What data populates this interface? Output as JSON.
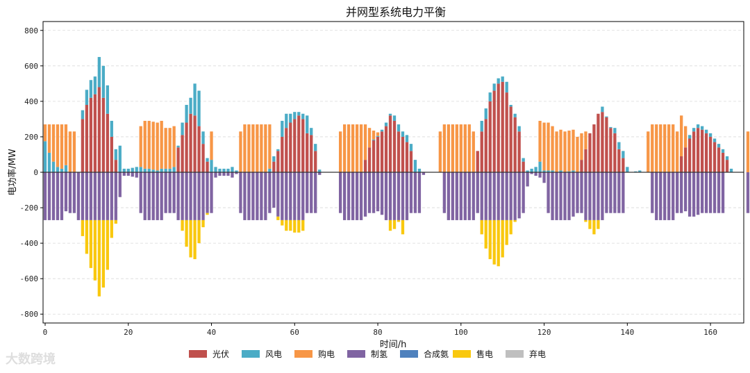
{
  "watermark": "大数跨境",
  "chart_data": {
    "type": "bar",
    "stacked": true,
    "title": "并网型系统电力平衡",
    "xlabel": "时间/h",
    "ylabel": "电功率/MW",
    "xlim": [
      -0.5,
      168
    ],
    "ylim": [
      -850,
      850
    ],
    "xticks": [
      0,
      20,
      40,
      60,
      80,
      100,
      120,
      140,
      160
    ],
    "yticks": [
      -800,
      -600,
      -400,
      -200,
      0,
      200,
      400,
      600,
      800
    ],
    "grid": true,
    "legend_position": "bottom",
    "colors": {
      "pv": "#c0504d",
      "wind": "#4bacc6",
      "purchase": "#f79646",
      "h2": "#8064a2",
      "nh3": "#4f81bd",
      "sale": "#f9c80e",
      "curtail": "#bfbfbf"
    },
    "series": [
      {
        "key": "pv",
        "name": "光伏",
        "values": [
          0,
          0,
          0,
          0,
          0,
          0,
          0,
          0,
          0,
          300,
          380,
          420,
          440,
          480,
          420,
          330,
          200,
          70,
          0,
          0,
          0,
          0,
          0,
          0,
          0,
          0,
          0,
          0,
          0,
          0,
          0,
          0,
          140,
          210,
          280,
          330,
          320,
          260,
          160,
          60,
          0,
          0,
          0,
          0,
          0,
          0,
          0,
          0,
          0,
          0,
          0,
          0,
          0,
          0,
          0,
          60,
          120,
          200,
          250,
          280,
          300,
          320,
          300,
          220,
          210,
          120,
          0,
          0,
          0,
          0,
          0,
          0,
          0,
          0,
          0,
          0,
          0,
          70,
          140,
          180,
          200,
          230,
          260,
          320,
          290,
          230,
          200,
          170,
          120,
          0,
          0,
          0,
          0,
          0,
          0,
          0,
          0,
          0,
          0,
          0,
          0,
          0,
          0,
          0,
          120,
          230,
          300,
          400,
          460,
          500,
          510,
          450,
          370,
          310,
          230,
          60,
          0,
          0,
          0,
          0,
          0,
          0,
          0,
          0,
          0,
          0,
          0,
          0,
          0,
          70,
          130,
          220,
          270,
          330,
          340,
          310,
          250,
          220,
          130,
          80,
          0,
          0,
          0,
          0,
          0,
          0,
          0,
          0,
          0,
          0,
          0,
          0,
          0,
          90,
          140,
          190,
          230,
          250,
          240,
          220,
          200,
          170,
          140,
          110,
          70,
          0,
          0,
          0,
          0,
          0,
          0,
          0
        ]
      },
      {
        "key": "wind",
        "name": "风电",
        "values": [
          175,
          110,
          60,
          30,
          20,
          40,
          0,
          0,
          0,
          50,
          85,
          100,
          100,
          170,
          180,
          160,
          90,
          60,
          150,
          20,
          20,
          25,
          30,
          30,
          20,
          20,
          15,
          10,
          20,
          20,
          20,
          30,
          10,
          70,
          100,
          90,
          180,
          200,
          70,
          20,
          70,
          30,
          20,
          20,
          20,
          30,
          10,
          0,
          0,
          0,
          0,
          0,
          0,
          0,
          20,
          30,
          10,
          90,
          80,
          50,
          40,
          20,
          30,
          100,
          40,
          40,
          15,
          0,
          0,
          0,
          0,
          0,
          0,
          0,
          0,
          0,
          0,
          0,
          0,
          5,
          5,
          10,
          20,
          10,
          30,
          40,
          30,
          40,
          40,
          70,
          20,
          0,
          0,
          0,
          0,
          0,
          0,
          0,
          0,
          0,
          0,
          0,
          0,
          0,
          0,
          60,
          60,
          50,
          40,
          30,
          30,
          60,
          10,
          20,
          30,
          20,
          10,
          20,
          30,
          60,
          10,
          10,
          10,
          0,
          10,
          0,
          5,
          10,
          0,
          0,
          0,
          0,
          0,
          0,
          30,
          5,
          5,
          30,
          40,
          40,
          30,
          0,
          5,
          10,
          0,
          0,
          0,
          0,
          0,
          0,
          0,
          0,
          0,
          0,
          0,
          20,
          20,
          20,
          20,
          20,
          20,
          20,
          20,
          20,
          20,
          20,
          0,
          0,
          0,
          0,
          0,
          0,
          0
        ]
      },
      {
        "key": "purchase",
        "name": "购电",
        "values": [
          95,
          160,
          210,
          240,
          250,
          230,
          230,
          230,
          0,
          0,
          0,
          0,
          0,
          0,
          0,
          0,
          0,
          0,
          0,
          0,
          0,
          0,
          0,
          230,
          270,
          270,
          270,
          270,
          270,
          230,
          230,
          230,
          0,
          0,
          0,
          0,
          0,
          0,
          0,
          0,
          160,
          0,
          0,
          0,
          0,
          0,
          0,
          230,
          270,
          270,
          270,
          270,
          270,
          270,
          250,
          0,
          0,
          0,
          0,
          0,
          0,
          0,
          0,
          0,
          0,
          0,
          0,
          0,
          0,
          0,
          0,
          230,
          270,
          270,
          270,
          270,
          270,
          200,
          110,
          50,
          20,
          0,
          0,
          0,
          0,
          0,
          0,
          0,
          0,
          0,
          0,
          0,
          0,
          0,
          0,
          230,
          270,
          270,
          270,
          270,
          270,
          270,
          270,
          230,
          0,
          0,
          0,
          0,
          0,
          0,
          0,
          0,
          0,
          0,
          0,
          0,
          0,
          0,
          0,
          230,
          270,
          270,
          250,
          230,
          230,
          230,
          230,
          230,
          200,
          150,
          100,
          0,
          0,
          0,
          0,
          0,
          0,
          0,
          0,
          0,
          0,
          0,
          0,
          0,
          0,
          230,
          270,
          270,
          270,
          270,
          270,
          270,
          230,
          230,
          120,
          0,
          0,
          0,
          0,
          0,
          0,
          0,
          0,
          0,
          0,
          0,
          0,
          0,
          0,
          230
        ]
      },
      {
        "key": "h2",
        "name": "制氢",
        "values": [
          -270,
          -270,
          -270,
          -270,
          -270,
          -220,
          -230,
          -230,
          -270,
          -270,
          -270,
          -270,
          -270,
          -270,
          -270,
          -270,
          -270,
          -270,
          -140,
          -20,
          -20,
          -25,
          -30,
          -230,
          -270,
          -270,
          -270,
          -270,
          -270,
          -230,
          -230,
          -230,
          -270,
          -270,
          -270,
          -270,
          -270,
          -270,
          -270,
          -230,
          -230,
          -30,
          -20,
          -20,
          -20,
          -30,
          -10,
          -230,
          -270,
          -270,
          -270,
          -270,
          -270,
          -270,
          -230,
          -200,
          -250,
          -270,
          -270,
          -270,
          -270,
          -270,
          -270,
          -230,
          -230,
          -230,
          -15,
          0,
          0,
          0,
          0,
          -230,
          -270,
          -270,
          -270,
          -270,
          -270,
          -250,
          -230,
          -230,
          -220,
          -240,
          -270,
          -270,
          -270,
          -270,
          -270,
          -270,
          -230,
          -230,
          -230,
          -15,
          0,
          0,
          0,
          0,
          -230,
          -270,
          -270,
          -270,
          -270,
          -270,
          -270,
          -270,
          -230,
          -270,
          -270,
          -270,
          -270,
          -270,
          -270,
          -270,
          -270,
          -270,
          -260,
          -230,
          -80,
          -10,
          -20,
          -30,
          -60,
          -230,
          -270,
          -270,
          -270,
          -270,
          -270,
          -250,
          -230,
          -230,
          -270,
          -270,
          -270,
          -270,
          -270,
          -230,
          -230,
          -230,
          -230,
          -230,
          0,
          0,
          0,
          0,
          0,
          0,
          -230,
          -270,
          -270,
          -270,
          -270,
          -270,
          -230,
          -230,
          -220,
          -250,
          -250,
          -240,
          -230,
          -230,
          -230,
          -230,
          -230,
          -230,
          0,
          0,
          0,
          0,
          0,
          -230
        ]
      },
      {
        "key": "nh3",
        "name": "合成氨",
        "values": [
          0,
          0,
          0,
          0,
          0,
          0,
          0,
          0,
          0,
          0,
          0,
          0,
          0,
          0,
          0,
          0,
          0,
          0,
          0,
          0,
          0,
          0,
          0,
          0,
          0,
          0,
          0,
          0,
          0,
          0,
          0,
          0,
          0,
          0,
          0,
          0,
          0,
          0,
          0,
          0,
          0,
          0,
          0,
          0,
          0,
          0,
          0,
          0,
          0,
          0,
          0,
          0,
          0,
          0,
          0,
          0,
          0,
          0,
          0,
          0,
          0,
          0,
          0,
          0,
          0,
          0,
          0,
          0,
          0,
          0,
          0,
          0,
          0,
          0,
          0,
          0,
          0,
          0,
          0,
          0,
          0,
          0,
          0,
          0,
          0,
          0,
          0,
          0,
          0,
          0,
          0,
          0,
          0,
          0,
          0,
          0,
          0,
          0,
          0,
          0,
          0,
          0,
          0,
          0,
          0,
          0,
          0,
          0,
          0,
          0,
          0,
          0,
          0,
          0,
          0,
          0,
          0,
          0,
          0,
          0,
          0,
          0,
          0,
          0,
          0,
          0,
          0,
          0,
          0,
          0,
          0,
          0,
          0,
          0,
          0,
          0,
          0,
          0,
          0,
          0,
          0,
          0,
          0,
          0,
          0,
          0,
          0,
          0,
          0,
          0,
          0,
          0,
          0,
          0,
          0,
          0,
          0,
          0,
          0,
          0,
          0,
          0,
          0,
          0,
          0,
          0,
          0,
          0
        ]
      },
      {
        "key": "sale",
        "name": "售电",
        "values": [
          0,
          0,
          0,
          0,
          0,
          0,
          0,
          0,
          0,
          -90,
          -190,
          -270,
          -340,
          -430,
          -380,
          -280,
          -100,
          -20,
          0,
          0,
          0,
          0,
          0,
          0,
          0,
          0,
          0,
          0,
          0,
          0,
          0,
          0,
          0,
          -60,
          -150,
          -210,
          -220,
          -130,
          -40,
          -10,
          0,
          0,
          0,
          0,
          0,
          0,
          0,
          0,
          0,
          0,
          0,
          0,
          0,
          0,
          0,
          0,
          -20,
          -30,
          -60,
          -60,
          -70,
          -70,
          -60,
          0,
          0,
          0,
          0,
          0,
          0,
          0,
          0,
          0,
          0,
          0,
          0,
          0,
          0,
          0,
          0,
          0,
          0,
          0,
          0,
          -60,
          -50,
          -10,
          -80,
          0,
          0,
          0,
          0,
          0,
          0,
          0,
          0,
          0,
          0,
          0,
          0,
          0,
          0,
          0,
          0,
          0,
          0,
          -80,
          -160,
          -220,
          -250,
          -260,
          -210,
          -140,
          -80,
          -10,
          0,
          0,
          0,
          0,
          0,
          0,
          0,
          0,
          0,
          0,
          0,
          0,
          0,
          0,
          0,
          0,
          -10,
          -50,
          -80,
          -50,
          0,
          0,
          0,
          0,
          0,
          0,
          0,
          0,
          0,
          0,
          0,
          0,
          0,
          0,
          0,
          0,
          0,
          0,
          0,
          0,
          0,
          0,
          0,
          0,
          0,
          0,
          0,
          0,
          0,
          0,
          0,
          0,
          0,
          0,
          0,
          0,
          0,
          0,
          0,
          0
        ]
      },
      {
        "key": "curtail",
        "name": "弃电",
        "values": [
          0,
          0,
          0,
          0,
          0,
          0,
          0,
          0,
          0,
          0,
          0,
          0,
          0,
          0,
          0,
          0,
          0,
          0,
          0,
          0,
          0,
          0,
          0,
          0,
          0,
          0,
          0,
          0,
          0,
          0,
          0,
          0,
          0,
          0,
          0,
          0,
          0,
          0,
          0,
          0,
          0,
          0,
          0,
          0,
          0,
          0,
          0,
          0,
          0,
          0,
          0,
          0,
          0,
          0,
          0,
          0,
          0,
          0,
          0,
          0,
          0,
          0,
          0,
          0,
          0,
          0,
          0,
          0,
          0,
          0,
          0,
          0,
          0,
          0,
          0,
          0,
          0,
          0,
          0,
          0,
          0,
          0,
          0,
          0,
          0,
          0,
          0,
          0,
          0,
          0,
          0,
          0,
          0,
          0,
          0,
          0,
          0,
          0,
          0,
          0,
          0,
          0,
          0,
          0,
          0,
          0,
          0,
          0,
          0,
          0,
          0,
          0,
          0,
          0,
          0,
          0,
          0,
          0,
          0,
          0,
          0,
          0,
          0,
          0,
          0,
          0,
          0,
          0,
          0,
          0,
          0,
          0,
          0,
          0,
          0,
          0,
          0,
          0,
          0,
          0,
          0,
          0,
          0,
          0,
          0,
          0,
          0,
          0,
          0,
          0,
          0,
          0,
          0,
          0,
          0,
          0,
          0,
          0,
          0,
          0,
          0,
          0,
          0,
          0,
          0,
          0,
          0,
          0
        ]
      }
    ]
  }
}
